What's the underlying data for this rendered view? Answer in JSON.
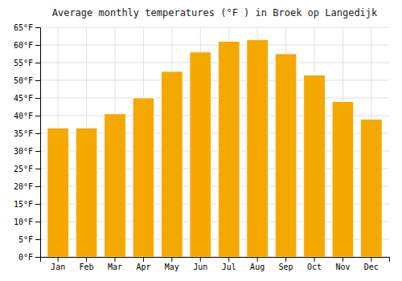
{
  "chart_data": {
    "type": "bar",
    "title": "Average monthly temperatures (°F ) in Broek op Langedijk",
    "categories": [
      "Jan",
      "Feb",
      "Mar",
      "Apr",
      "May",
      "Jun",
      "Jul",
      "Aug",
      "Sep",
      "Oct",
      "Nov",
      "Dec"
    ],
    "values": [
      36.5,
      36.5,
      40.5,
      45.0,
      52.5,
      58.0,
      61.0,
      61.5,
      57.5,
      51.5,
      44.0,
      39.0
    ],
    "color": "#F5A800",
    "ylim": [
      0,
      65
    ],
    "yticks": [
      {
        "value": 0,
        "label": "0°F"
      },
      {
        "value": 5,
        "label": "5°F"
      },
      {
        "value": 10,
        "label": "10°F"
      },
      {
        "value": 15,
        "label": "15°F"
      },
      {
        "value": 20,
        "label": "20°F"
      },
      {
        "value": 25,
        "label": "25°F"
      },
      {
        "value": 30,
        "label": "30°F"
      },
      {
        "value": 35,
        "label": "35°F"
      },
      {
        "value": 40,
        "label": "40°F"
      },
      {
        "value": 45,
        "label": "45°F"
      },
      {
        "value": 50,
        "label": "50°F"
      },
      {
        "value": 55,
        "label": "55°F"
      },
      {
        "value": 60,
        "label": "60°F"
      },
      {
        "value": 65,
        "label": "65°F"
      }
    ],
    "grid": true
  }
}
